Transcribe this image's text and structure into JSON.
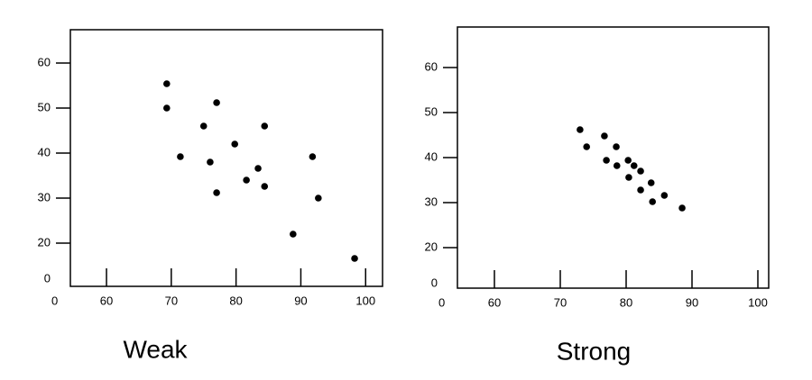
{
  "chart_data": [
    {
      "type": "scatter",
      "caption": "Weak",
      "color": "#000000",
      "axis_break": true,
      "x": [
        69.3,
        69.3,
        71.4,
        75.0,
        76.0,
        77.0,
        77.0,
        79.8,
        81.6,
        83.4,
        84.4,
        84.4,
        88.8,
        91.8,
        92.7,
        98.3
      ],
      "values": [
        55.4,
        50,
        39.2,
        46,
        38,
        51.2,
        31.2,
        42,
        34,
        36.6,
        46,
        32.6,
        22,
        39.2,
        30,
        16.6
      ],
      "xlim": [
        52,
        102
      ],
      "ylim": [
        12,
        66
      ],
      "xticks": [
        0,
        60,
        70,
        80,
        90,
        100
      ],
      "yticks": [
        0,
        20,
        30,
        40,
        50,
        60
      ]
    },
    {
      "type": "scatter",
      "caption": "Strong",
      "color": "#000000",
      "axis_break": true,
      "x": [
        73,
        74,
        76.7,
        77,
        78.5,
        78.6,
        80.3,
        80.4,
        81.2,
        82.2,
        82.2,
        83.8,
        84,
        85.8,
        88.5
      ],
      "values": [
        46.2,
        42.4,
        44.8,
        39.4,
        42.4,
        38.2,
        39.4,
        35.6,
        38.2,
        37,
        32.8,
        34.4,
        30.2,
        31.6,
        28.8
      ],
      "xlim": [
        52,
        102
      ],
      "ylim": [
        12,
        66
      ],
      "xticks": [
        0,
        60,
        70,
        80,
        90,
        100
      ],
      "yticks": [
        0,
        20,
        30,
        40,
        50,
        60
      ]
    }
  ]
}
